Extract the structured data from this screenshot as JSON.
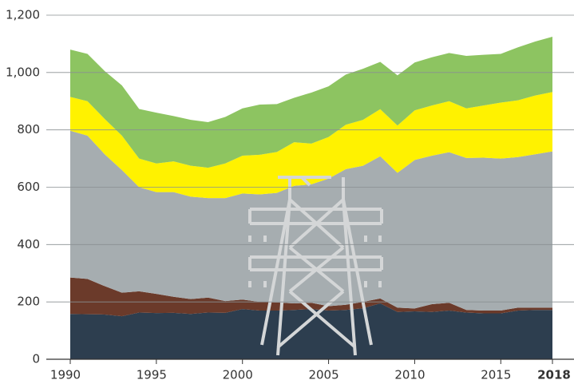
{
  "chart_data": {
    "type": "stacked-area",
    "x": [
      1990,
      1991,
      1992,
      1993,
      1994,
      1995,
      1996,
      1997,
      1998,
      1999,
      2000,
      2001,
      2002,
      2003,
      2004,
      2005,
      2006,
      2007,
      2008,
      2009,
      2010,
      2011,
      2012,
      2013,
      2014,
      2015,
      2016,
      2017,
      2018
    ],
    "series": [
      {
        "color": "#2d3e4f",
        "values": [
          158,
          157,
          156,
          150,
          163,
          161,
          162,
          158,
          163,
          162,
          175,
          170,
          170,
          172,
          175,
          170,
          172,
          178,
          195,
          165,
          167,
          165,
          170,
          163,
          160,
          160,
          170,
          172,
          172
        ]
      },
      {
        "color": "#6b3a2a",
        "values": [
          127,
          123,
          99,
          82,
          74,
          67,
          56,
          52,
          52,
          41,
          33,
          30,
          28,
          23,
          22,
          15,
          18,
          22,
          17,
          15,
          10,
          27,
          27,
          9,
          10,
          10,
          10,
          8,
          8
        ]
      },
      {
        "color": "#a6adb0",
        "values": [
          512,
          500,
          460,
          428,
          363,
          355,
          365,
          357,
          347,
          359,
          370,
          375,
          382,
          410,
          413,
          445,
          473,
          475,
          496,
          470,
          518,
          518,
          525,
          530,
          533,
          530,
          525,
          535,
          545
        ]
      },
      {
        "color": "#fff200",
        "values": [
          118,
          120,
          123,
          120,
          100,
          100,
          107,
          108,
          106,
          121,
          132,
          138,
          143,
          152,
          142,
          145,
          155,
          160,
          164,
          165,
          173,
          175,
          178,
          173,
          182,
          195,
          198,
          205,
          207
        ]
      },
      {
        "color": "#8dc461",
        "values": [
          165,
          165,
          167,
          175,
          173,
          177,
          158,
          160,
          159,
          162,
          165,
          175,
          167,
          155,
          178,
          177,
          175,
          178,
          165,
          175,
          167,
          168,
          168,
          183,
          177,
          170,
          185,
          188,
          193
        ]
      }
    ],
    "xlim": [
      1990,
      2018
    ],
    "xticks": [
      1990,
      1995,
      2000,
      2005,
      2010,
      2015,
      2018
    ],
    "ylim": [
      0,
      1200
    ],
    "yticks": [
      0,
      200,
      400,
      600,
      800,
      {
        "value": 1000,
        "label": "1,000"
      },
      {
        "value": 1200,
        "label": "1,200"
      }
    ],
    "grid": true
  }
}
